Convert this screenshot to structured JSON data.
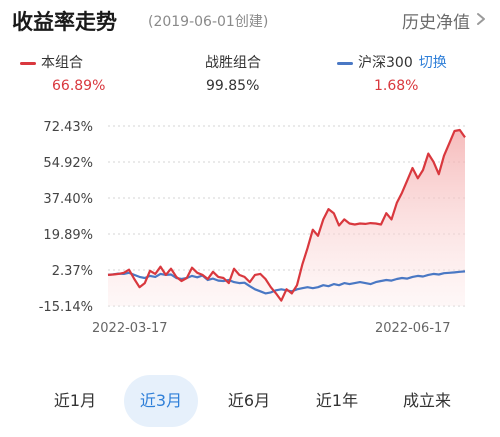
{
  "header": {
    "title": "收益率走势",
    "created": "(2019-06-01创建)",
    "history_label": "历史净值"
  },
  "legend": {
    "portfolio": {
      "name": "本组合",
      "value": "66.89%",
      "color": "#d9383e"
    },
    "beat": {
      "name": "战胜组合",
      "value": "99.85%"
    },
    "benchmark": {
      "name": "沪深300",
      "value": "1.68%",
      "color": "#4a78c4"
    },
    "switch_label": "切换"
  },
  "chart_data": {
    "type": "line",
    "y_ticks": [
      "72.43%",
      "54.92%",
      "37.40%",
      "19.89%",
      "2.37%",
      "-15.14%"
    ],
    "ylim": [
      -15.14,
      72.43
    ],
    "x_labels": [
      "2022-03-17",
      "2022-06-17"
    ],
    "series": [
      {
        "name": "本组合",
        "color": "#d9383e",
        "values": [
          0.0,
          0.2,
          0.5,
          1.0,
          2.5,
          -2.0,
          -6.0,
          -4.0,
          2.0,
          0.5,
          4.0,
          0.0,
          3.0,
          -1.0,
          -3.0,
          -1.5,
          3.5,
          1.0,
          0.0,
          -2.0,
          1.5,
          -1.0,
          -1.5,
          -4.0,
          3.0,
          0.0,
          -1.0,
          -3.5,
          0.0,
          0.5,
          -2.0,
          -6.0,
          -9.0,
          -12.5,
          -7.0,
          -9.0,
          -5.0,
          5.0,
          13.0,
          22.0,
          19.0,
          27.0,
          32.0,
          30.0,
          24.0,
          27.0,
          25.0,
          24.5,
          25.0,
          24.8,
          25.2,
          25.0,
          24.5,
          30.0,
          27.0,
          35.0,
          40.0,
          46.0,
          52.0,
          47.0,
          51.0,
          59.0,
          55.0,
          49.0,
          58.0,
          64.0,
          70.0,
          70.5,
          66.89
        ]
      },
      {
        "name": "沪深300",
        "color": "#4a78c4",
        "values": [
          0.0,
          0.3,
          0.6,
          0.5,
          1.0,
          0.0,
          -1.0,
          -1.5,
          -0.5,
          -1.0,
          0.5,
          0.0,
          0.2,
          -1.5,
          -2.0,
          -1.5,
          -0.5,
          -1.2,
          -0.3,
          -2.5,
          -1.8,
          -2.8,
          -3.0,
          -2.5,
          -3.5,
          -4.0,
          -3.8,
          -5.5,
          -7.0,
          -8.0,
          -9.0,
          -8.5,
          -7.5,
          -7.0,
          -7.5,
          -8.0,
          -7.0,
          -6.5,
          -6.0,
          -6.5,
          -6.0,
          -5.0,
          -5.5,
          -4.5,
          -5.0,
          -4.0,
          -4.5,
          -4.0,
          -3.5,
          -4.0,
          -4.5,
          -3.5,
          -3.0,
          -2.5,
          -2.8,
          -2.0,
          -1.5,
          -1.8,
          -1.0,
          -0.5,
          -0.8,
          0.0,
          0.5,
          0.2,
          0.8,
          1.0,
          1.2,
          1.5,
          1.68
        ]
      }
    ]
  },
  "tabs": [
    {
      "label": "近1月",
      "active": false
    },
    {
      "label": "近3月",
      "active": true
    },
    {
      "label": "近6月",
      "active": false
    },
    {
      "label": "近1年",
      "active": false
    },
    {
      "label": "成立来",
      "active": false
    }
  ]
}
